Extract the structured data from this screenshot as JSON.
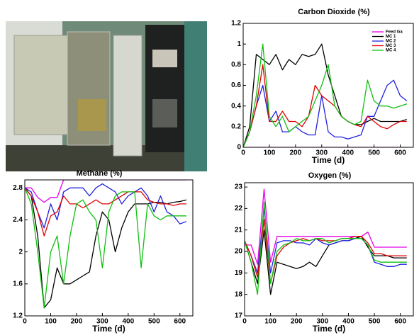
{
  "chart_data": [
    {
      "type": "line",
      "title": "Carbon Dioxide (%)",
      "x_label": "Time (d)",
      "x": [
        0,
        25,
        50,
        75,
        100,
        125,
        150,
        175,
        200,
        225,
        250,
        275,
        300,
        325,
        350,
        375,
        400,
        425,
        450,
        475,
        500,
        525,
        550,
        575,
        600,
        625
      ],
      "xlim": [
        0,
        650
      ],
      "xticks": [
        0,
        100,
        200,
        300,
        400,
        500,
        600
      ],
      "ylim": [
        0,
        1.2
      ],
      "yticks": [
        0,
        0.2,
        0.4,
        0.6,
        0.8,
        1,
        1.2
      ],
      "legend": "upper right",
      "series": [
        {
          "name": "Feed Ga",
          "color": "#e800e8",
          "values": [
            0,
            0,
            0,
            0,
            0,
            0,
            0,
            0,
            0,
            0,
            0,
            0,
            0,
            0,
            0,
            0,
            0,
            0,
            0,
            0,
            0,
            0,
            0,
            0,
            0,
            0
          ]
        },
        {
          "name": "MC 1",
          "color": "#000000",
          "values": [
            0,
            0.2,
            0.9,
            0.85,
            0.8,
            0.9,
            0.75,
            0.85,
            0.8,
            0.9,
            0.88,
            0.9,
            1.0,
            0.7,
            0.5,
            0.3,
            0.25,
            0.22,
            0.22,
            0.25,
            0.28,
            0.25,
            0.25,
            0.25,
            0.25,
            0.27
          ]
        },
        {
          "name": "MC 2",
          "color": "#2020e0",
          "values": [
            0,
            0.15,
            0.4,
            0.6,
            0.25,
            0.35,
            0.15,
            0.15,
            0.2,
            0.15,
            0.12,
            0.12,
            0.5,
            0.15,
            0.1,
            0.1,
            0.08,
            0.1,
            0.12,
            0.3,
            0.3,
            0.45,
            0.6,
            0.65,
            0.5,
            0.45
          ]
        },
        {
          "name": "MC 3",
          "color": "#e00000",
          "values": [
            0,
            0.15,
            0.4,
            0.8,
            0.25,
            0.25,
            0.35,
            0.25,
            0.25,
            0.2,
            0.3,
            0.6,
            0.5,
            0.45,
            0.4,
            0.3,
            0.25,
            0.22,
            0.2,
            0.3,
            0.25,
            0.2,
            0.18,
            0.22,
            0.25,
            0.25
          ]
        },
        {
          "name": "MC 4",
          "color": "#10c010",
          "values": [
            0,
            0.15,
            0.5,
            1.0,
            0.3,
            0.2,
            0.3,
            0.15,
            0.2,
            0.25,
            0.3,
            0.45,
            0.6,
            0.8,
            0.4,
            0.3,
            0.25,
            0.22,
            0.25,
            0.65,
            0.45,
            0.4,
            0.4,
            0.38,
            0.4,
            0.42
          ]
        }
      ]
    },
    {
      "type": "line",
      "title": "Methane (%)",
      "x_label": "Time (d)",
      "x": [
        0,
        25,
        50,
        75,
        100,
        125,
        150,
        175,
        200,
        225,
        250,
        275,
        300,
        325,
        350,
        375,
        400,
        425,
        450,
        475,
        500,
        525,
        550,
        575,
        600,
        625
      ],
      "xlim": [
        0,
        650
      ],
      "xticks": [
        0,
        100,
        200,
        300,
        400,
        500,
        600
      ],
      "ylim": [
        1.2,
        2.9
      ],
      "yticks": [
        1.2,
        1.6,
        2,
        2.4,
        2.8
      ],
      "series": [
        {
          "color": "#e800e8",
          "values": [
            2.8,
            2.8,
            2.68,
            2.62,
            2.68,
            2.68,
            2.9,
            2.9,
            2.9,
            2.9,
            2.9,
            2.9,
            2.9,
            2.9,
            2.9,
            2.9,
            2.9,
            2.9,
            2.9,
            2.9,
            2.9,
            2.9,
            2.9,
            2.9,
            2.9,
            2.9
          ]
        },
        {
          "color": "#000000",
          "values": [
            2.8,
            2.7,
            2.2,
            1.3,
            1.4,
            1.8,
            1.6,
            1.6,
            1.65,
            1.7,
            1.75,
            2.2,
            2.5,
            2.4,
            2.0,
            2.3,
            2.5,
            2.6,
            2.6,
            2.6,
            2.62,
            2.62,
            2.6,
            2.62,
            2.63,
            2.65
          ]
        },
        {
          "color": "#2020e0",
          "values": [
            2.8,
            2.75,
            2.5,
            2.3,
            2.6,
            2.4,
            2.75,
            2.8,
            2.8,
            2.8,
            2.7,
            2.8,
            2.85,
            2.8,
            2.75,
            2.6,
            2.7,
            2.75,
            2.8,
            2.7,
            2.5,
            2.7,
            2.5,
            2.45,
            2.35,
            2.38
          ]
        },
        {
          "color": "#e00000",
          "values": [
            2.8,
            2.7,
            2.5,
            2.2,
            2.45,
            2.5,
            2.7,
            2.6,
            2.6,
            2.55,
            2.6,
            2.65,
            2.6,
            2.6,
            2.65,
            2.7,
            2.75,
            2.75,
            2.75,
            2.65,
            2.62,
            2.6,
            2.6,
            2.58,
            2.6,
            2.6
          ]
        },
        {
          "color": "#10c010",
          "values": [
            2.8,
            2.6,
            2.0,
            1.3,
            2.0,
            2.2,
            1.6,
            2.2,
            2.6,
            2.65,
            2.5,
            2.4,
            1.8,
            2.5,
            2.7,
            2.75,
            2.75,
            2.75,
            1.8,
            2.6,
            2.45,
            2.4,
            2.45,
            2.45,
            2.45,
            2.45
          ]
        }
      ]
    },
    {
      "type": "line",
      "title": "Oxygen (%)",
      "x_label": "Time (d)",
      "x": [
        0,
        25,
        50,
        75,
        100,
        125,
        150,
        175,
        200,
        225,
        250,
        275,
        300,
        325,
        350,
        375,
        400,
        425,
        450,
        475,
        500,
        525,
        550,
        575,
        600,
        625
      ],
      "xlim": [
        0,
        650
      ],
      "xticks": [
        0,
        100,
        200,
        300,
        400,
        500,
        600
      ],
      "ylim": [
        17,
        23.2
      ],
      "yticks": [
        17,
        18,
        19,
        20,
        21,
        22,
        23
      ],
      "series": [
        {
          "color": "#e800e8",
          "values": [
            20.3,
            20.3,
            19.4,
            22.9,
            19.5,
            20.7,
            20.7,
            20.7,
            20.7,
            20.7,
            20.7,
            20.7,
            20.7,
            20.7,
            20.7,
            20.7,
            20.7,
            20.7,
            20.7,
            20.9,
            20.2,
            20.2,
            20.2,
            20.2,
            20.2,
            20.2
          ]
        },
        {
          "color": "#000000",
          "values": [
            20.5,
            19.5,
            18.5,
            21,
            18,
            19.5,
            19.4,
            19.3,
            19.2,
            19.3,
            19.5,
            19.3,
            19.8,
            20.3,
            20.4,
            20.5,
            20.5,
            20.6,
            20.7,
            20.2,
            19.8,
            19.8,
            19.8,
            19.7,
            19.7,
            19.7
          ]
        },
        {
          "color": "#2020e0",
          "values": [
            20.5,
            19.8,
            19,
            22,
            19,
            20.4,
            20.5,
            20.5,
            20.4,
            20.4,
            20.3,
            20.6,
            20.4,
            20.3,
            20.4,
            20.5,
            20.5,
            20.6,
            20.6,
            20.3,
            19.5,
            19.4,
            19.3,
            19.3,
            19.4,
            19.4
          ]
        },
        {
          "color": "#e00000",
          "values": [
            20.5,
            19.8,
            18.8,
            21.5,
            18.5,
            19.8,
            20.2,
            20.4,
            20.5,
            20.6,
            20.5,
            20.6,
            20.5,
            20.5,
            20.5,
            20.6,
            20.6,
            20.7,
            20.7,
            20.4,
            19.9,
            19.9,
            19.8,
            19.8,
            19.8,
            19.8
          ]
        },
        {
          "color": "#10c010",
          "values": [
            20.5,
            19.5,
            18,
            22.3,
            18.5,
            20,
            20.3,
            20.4,
            20.6,
            20.5,
            20.5,
            20.6,
            20.6,
            20.4,
            20.5,
            20.6,
            20.6,
            20.6,
            20.6,
            20.3,
            19.6,
            19.5,
            19.5,
            19.5,
            19.5,
            19.5
          ]
        }
      ]
    }
  ]
}
